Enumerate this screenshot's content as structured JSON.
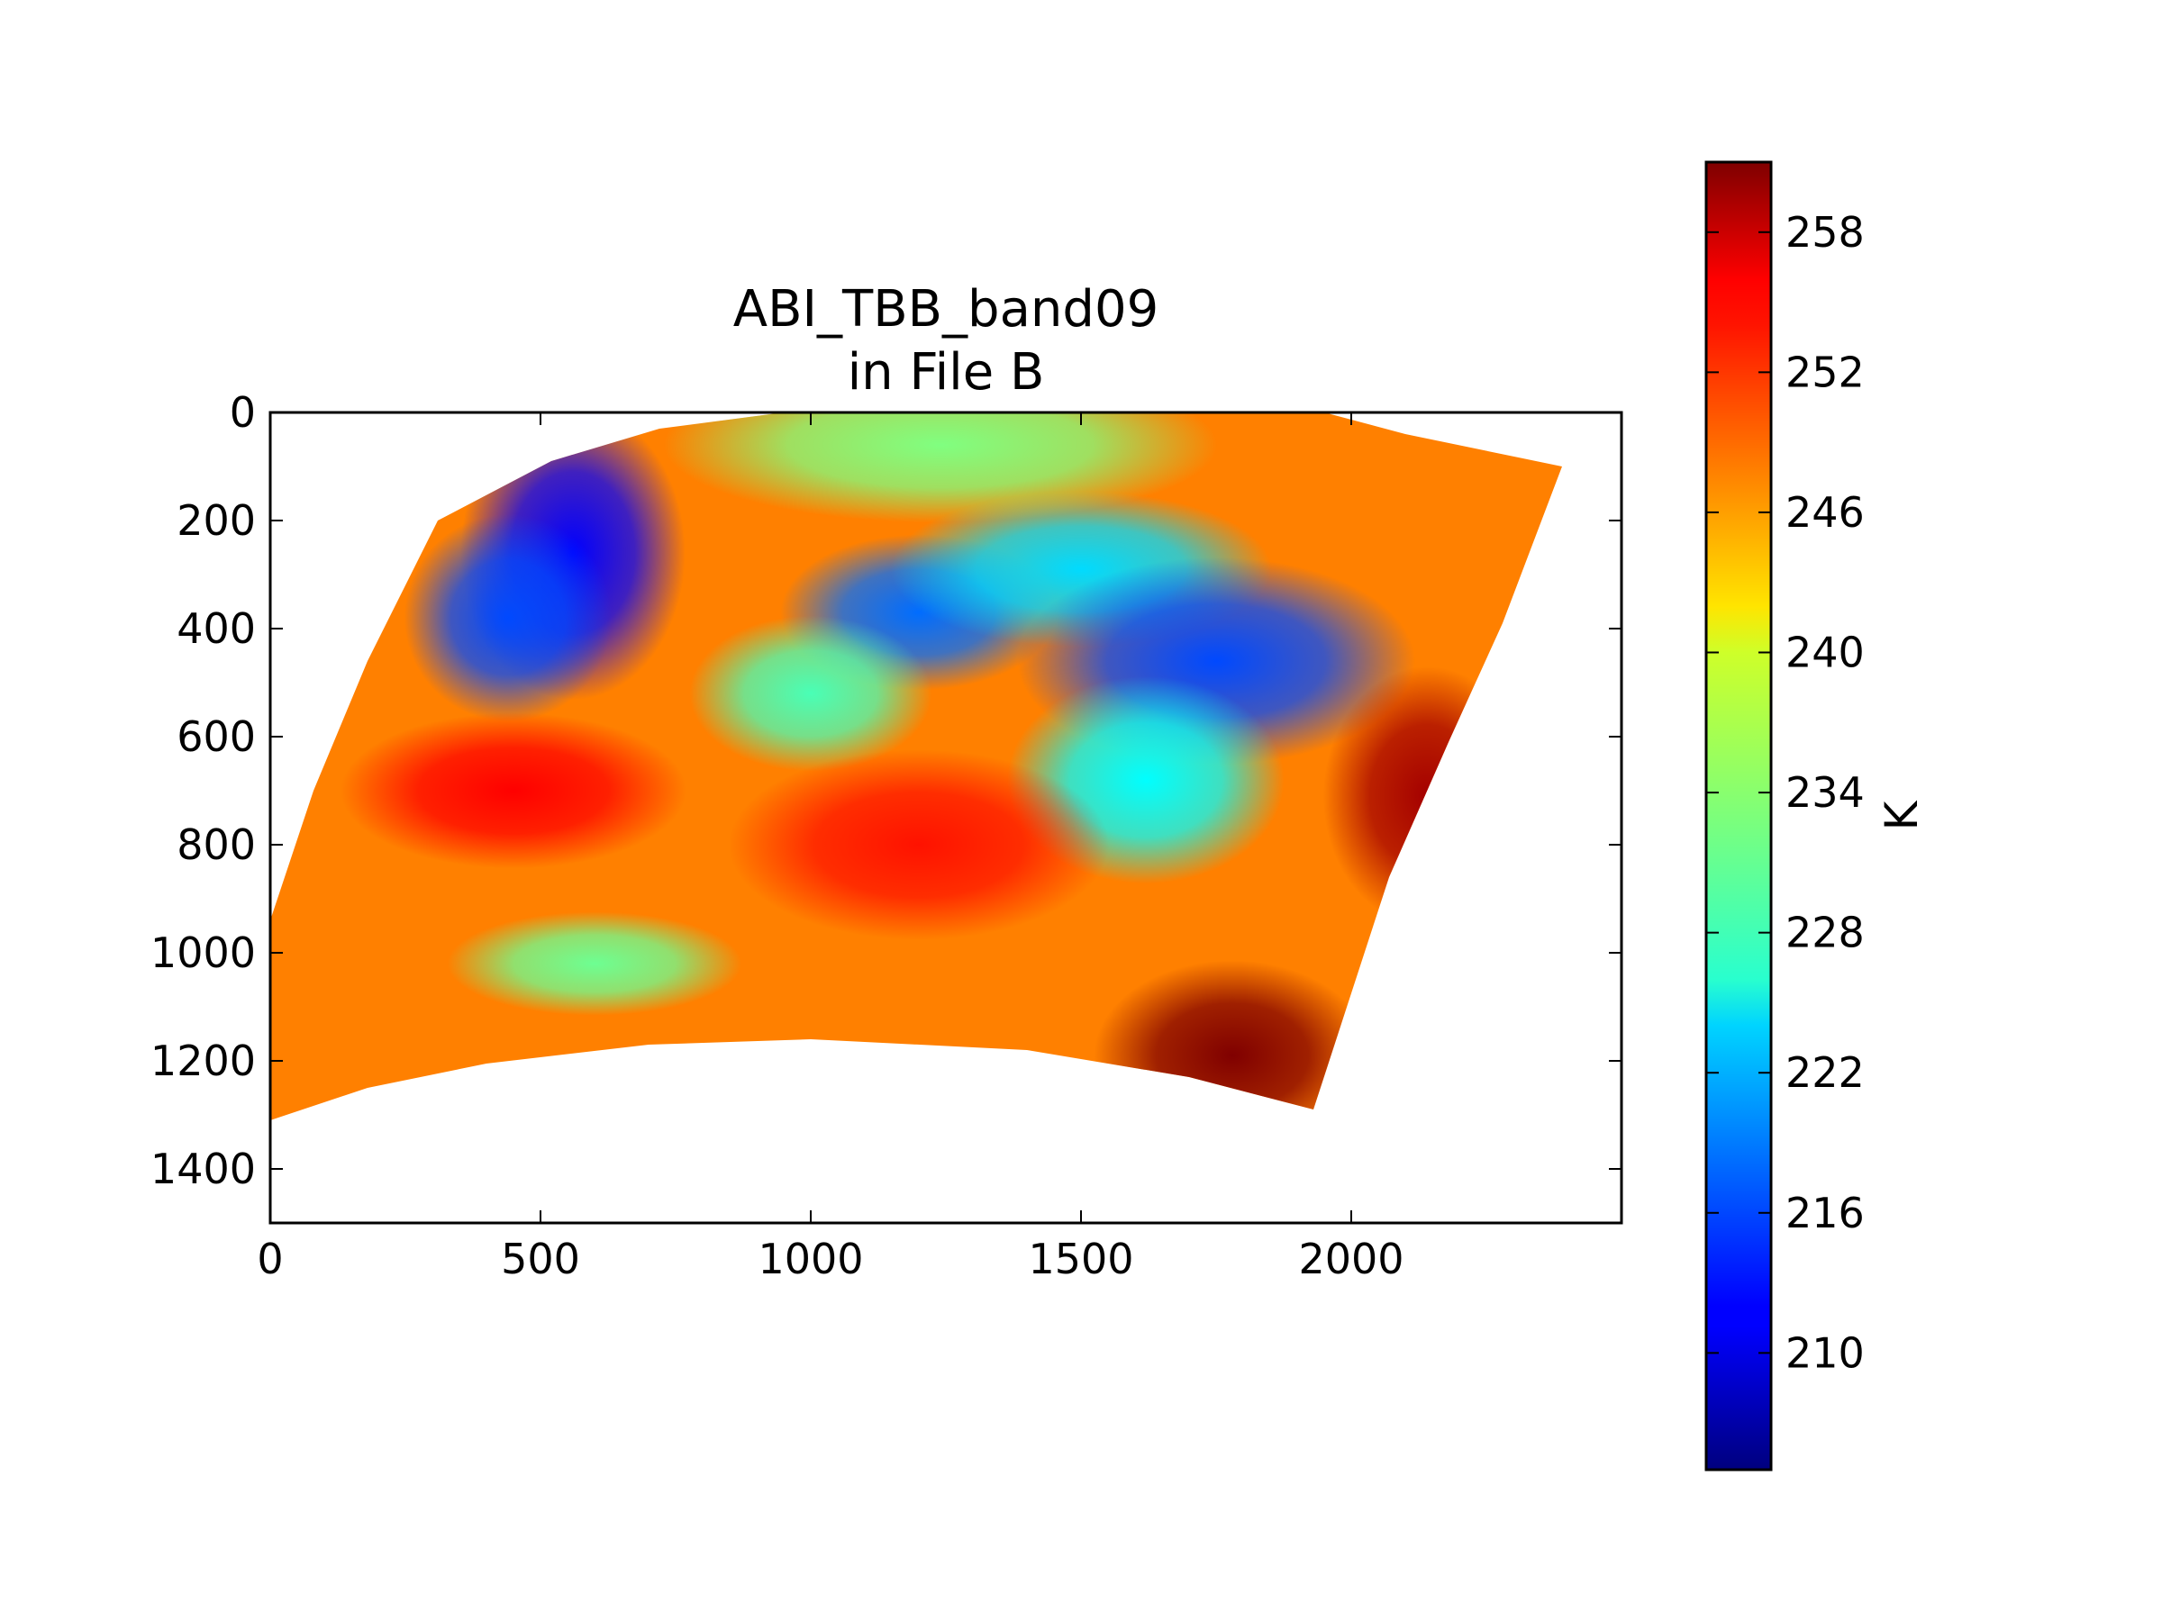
{
  "chart_data": {
    "type": "heatmap",
    "title": "ABI_TBB_band09\nin File B",
    "title_lines": [
      "ABI_TBB_band09",
      "in File B"
    ],
    "xlabel": "",
    "ylabel": "",
    "xlim": [
      0,
      2500
    ],
    "ylim": [
      1500,
      0
    ],
    "x_ticks": [
      0,
      500,
      1000,
      1500,
      2000
    ],
    "y_ticks": [
      0,
      200,
      400,
      600,
      800,
      1000,
      1200,
      1400
    ],
    "grid": false,
    "colormap": "jet",
    "colorbar": {
      "label": "K",
      "range": [
        205,
        261
      ],
      "ticks": [
        210,
        216,
        222,
        228,
        234,
        240,
        246,
        252,
        258
      ],
      "placement": "right"
    },
    "swath_outline": [
      [
        0,
        940
      ],
      [
        80,
        700
      ],
      [
        180,
        460
      ],
      [
        310,
        200
      ],
      [
        520,
        90
      ],
      [
        720,
        30
      ],
      [
        950,
        0
      ],
      [
        1300,
        0
      ],
      [
        1700,
        0
      ],
      [
        1950,
        0
      ],
      [
        2100,
        40
      ],
      [
        2390,
        100
      ],
      [
        2280,
        390
      ],
      [
        2180,
        610
      ],
      [
        2070,
        860
      ],
      [
        1930,
        1290
      ],
      [
        1700,
        1230
      ],
      [
        1400,
        1180
      ],
      [
        1000,
        1160
      ],
      [
        700,
        1170
      ],
      [
        400,
        1205
      ],
      [
        180,
        1250
      ],
      [
        0,
        1310
      ]
    ],
    "field_features": [
      {
        "x": 560,
        "y": 260,
        "sx": 130,
        "sy": 170,
        "value": 212
      },
      {
        "x": 440,
        "y": 380,
        "sx": 120,
        "sy": 120,
        "value": 216
      },
      {
        "x": 1200,
        "y": 370,
        "sx": 160,
        "sy": 90,
        "value": 218
      },
      {
        "x": 1500,
        "y": 290,
        "sx": 220,
        "sy": 90,
        "value": 224
      },
      {
        "x": 1750,
        "y": 460,
        "sx": 230,
        "sy": 120,
        "value": 216
      },
      {
        "x": 1620,
        "y": 680,
        "sx": 160,
        "sy": 120,
        "value": 226
      },
      {
        "x": 1000,
        "y": 520,
        "sx": 140,
        "sy": 90,
        "value": 230
      },
      {
        "x": 600,
        "y": 1020,
        "sx": 170,
        "sy": 60,
        "value": 232
      },
      {
        "x": 1240,
        "y": 60,
        "sx": 320,
        "sy": 90,
        "value": 233
      },
      {
        "x": 1780,
        "y": 1190,
        "sx": 160,
        "sy": 110,
        "value": 261
      },
      {
        "x": 2140,
        "y": 710,
        "sx": 120,
        "sy": 150,
        "value": 259
      },
      {
        "x": 450,
        "y": 700,
        "sx": 200,
        "sy": 90,
        "value": 254
      },
      {
        "x": 1200,
        "y": 800,
        "sx": 220,
        "sy": 110,
        "value": 253
      }
    ],
    "field_background": 247
  }
}
